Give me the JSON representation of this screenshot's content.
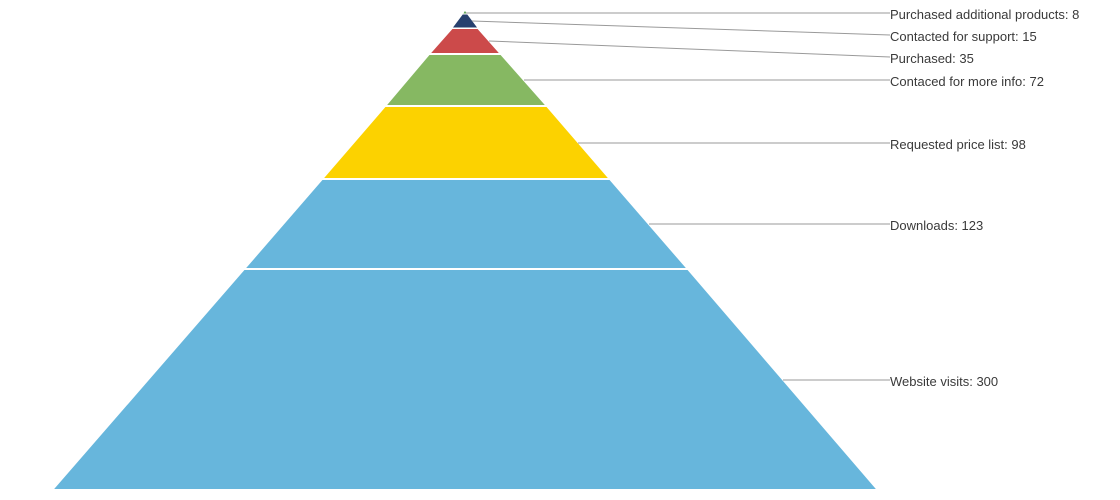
{
  "chart_data": {
    "type": "pyramid",
    "title": "",
    "series": [
      {
        "name": "",
        "points": [
          {
            "label": "Purchased additional products",
            "value": 8,
            "color": "#27406e"
          },
          {
            "label": "Contacted for support",
            "value": 15,
            "color": "#d183b0"
          },
          {
            "label": "Purchased",
            "value": 35,
            "color": "#cc4a4a"
          },
          {
            "label": "Contaced for more info",
            "value": 72,
            "color": "#86b862"
          },
          {
            "label": "Requested price list",
            "value": 98,
            "color": "#fcd200"
          },
          {
            "label": "Downloads",
            "value": 123,
            "color": "#67b6dc"
          },
          {
            "label": "Website visits",
            "value": 300,
            "color": "#67b6dc"
          }
        ]
      }
    ],
    "tip_color": "#5aa052",
    "label_format": "{label}: {value}",
    "legend": "none",
    "grid": false
  }
}
